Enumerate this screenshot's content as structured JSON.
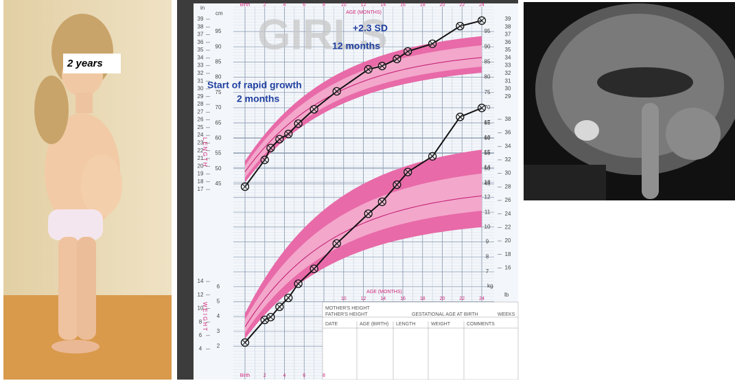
{
  "photo_label": "2 years",
  "annotations": {
    "sd": "+2.3 SD",
    "sd_age": "12 months",
    "rapid": "Start of rapid growth",
    "rapid_age": "2 months"
  },
  "growth_chart": {
    "watermark": "GIRLS",
    "axis_title_top": "AGE (MONTHS)",
    "axis_title_mid": "AGE (MONTHS)",
    "length_label": "LENGTH",
    "weight_label": "WEIGHT",
    "in_unit": "in",
    "cm_unit": "cm",
    "kg_unit": "kg",
    "lb_unit": "lb",
    "month_ticks": [
      {
        "value": 0,
        "label": "Birth"
      },
      2,
      4,
      6,
      8,
      10,
      12,
      14,
      16,
      18,
      20,
      22,
      24
    ],
    "cm_ticks": [
      45,
      50,
      55,
      60,
      65,
      70,
      75,
      80,
      85,
      90,
      95
    ],
    "kg_ticks": [
      2,
      3,
      4,
      5,
      6,
      7,
      8,
      9,
      10,
      11,
      12,
      13,
      14,
      15,
      16,
      17
    ],
    "in_ticks": [
      17,
      18,
      19,
      20,
      21,
      22,
      23,
      24,
      25,
      26,
      27,
      28,
      29,
      30,
      31,
      32,
      33,
      34,
      35,
      36,
      37,
      38,
      39
    ],
    "lb_ticks": [
      4,
      6,
      8,
      10,
      12,
      14,
      16,
      18,
      20,
      22,
      24,
      26,
      28,
      30,
      32,
      34,
      36,
      38
    ],
    "length": {
      "months": [
        0,
        2,
        2.6,
        3.5,
        4.4,
        5.4,
        7,
        9.3,
        12.5,
        13.9,
        15.4,
        16.5,
        19,
        21.8,
        24
      ],
      "cm": [
        44.1,
        52.9,
        56.8,
        59.7,
        61.4,
        64.8,
        69.5,
        75.4,
        82.6,
        83.7,
        86,
        88.5,
        91,
        96.8,
        98.6
      ]
    },
    "weight": {
      "months": [
        0,
        2,
        2.6,
        3.5,
        4.4,
        5.4,
        7,
        9.3,
        12.5,
        13.9,
        15.4,
        16.5,
        19,
        21.8,
        24
      ],
      "kg": [
        2.25,
        3.77,
        3.96,
        4.65,
        5.25,
        6.2,
        7.2,
        8.9,
        10.9,
        11.7,
        12.85,
        13.7,
        14.75,
        17.4,
        18.0
      ]
    },
    "form": {
      "mother": "MOTHER'S HEIGHT",
      "father": "FATHER'S HEIGHT",
      "gest": "GESTATIONAL AGE AT BIRTH",
      "weeks": "WEEKS",
      "cols": [
        "DATE",
        "AGE (BIRTH)",
        "LENGTH",
        "WEIGHT",
        "COMMENTS"
      ]
    }
  }
}
